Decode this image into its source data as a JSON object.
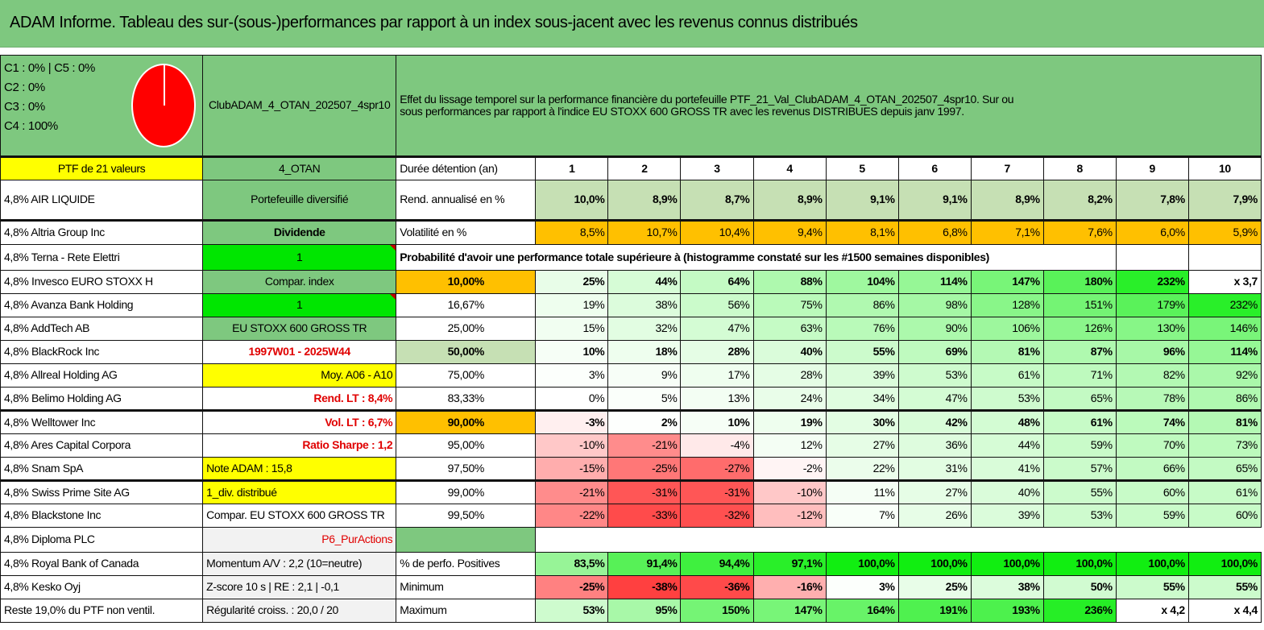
{
  "title": "ADAM Informe. Tableau des sur-(sous-)performances par rapport à un index sous-jacent avec les revenus connus distribués",
  "header": {
    "categories": [
      "C1 : 0% | C5 : 0%",
      "C2 : 0%",
      "C3 : 0%",
      "C4 : 100%"
    ],
    "pie": {
      "C1": 0,
      "C2": 0,
      "C3": 0,
      "C4": 100,
      "C5": 0,
      "color": "#ff0000"
    },
    "portfolio_name": "ClubADAM_4_OTAN_202507_4spr10",
    "description_lines": [
      "Effet du lissage temporel sur la performance financière du portefeuille PTF_21_Val_ClubADAM_4_OTAN_202507_4spr10. Sur ou",
      "sous performances par rapport à l'indice EU STOXX 600 GROSS TR avec les revenus DISTRIBUES depuis janv 1997."
    ]
  },
  "ptf_label": "PTF de 21 valeurs",
  "holdings": [
    "4,8% AIR LIQUIDE",
    "4,8% Altria Group Inc",
    "4,8% Terna - Rete Elettri",
    "4,8% Invesco EURO STOXX H",
    "4,8% Avanza Bank Holding",
    "4,8% AddTech AB",
    "4,8% BlackRock Inc",
    "4,8% Allreal Holding AG",
    "4,8% Belimo Holding AG",
    "4,8% Welltower Inc",
    "4,8% Ares Capital Corpora",
    "4,8% Snam SpA",
    "4,8% Swiss Prime Site AG",
    "4,8% Blackstone Inc",
    "4,8% Diploma PLC",
    "4,8% Royal Bank of Canada",
    "4,8% Kesko Oyj",
    "Reste 19,0% du PTF non ventil."
  ],
  "info": {
    "group": "4_OTAN",
    "type": "Portefeuille diversifié",
    "dividend_label": "Dividende",
    "dividend_value": "1",
    "compar_label": "Compar. index",
    "compar_value": "1",
    "index_name": "EU STOXX 600 GROSS TR",
    "period": "1997W01 - 2025W44",
    "avg": "Moy. A06 - A10",
    "rend_lt": "Rend. LT : 8,4%",
    "vol_lt": "Vol. LT : 6,7%",
    "sharpe": "Ratio Sharpe : 1,2",
    "note": "Note ADAM : 15,8",
    "div_mode": "1_div. distribué",
    "compar_full": "Compar. EU STOXX 600 GROSS TR",
    "profile": "P6_PurActions",
    "momentum": "Momentum A/V : 2,2 (10=neutre)",
    "zscore": "Z-score 10 s | RE : 2,1 | -0,1",
    "regularity": "Régularité croiss. : 20,0 / 20"
  },
  "table": {
    "duration_label": "Durée détention (an)",
    "years": [
      "1",
      "2",
      "3",
      "4",
      "5",
      "6",
      "7",
      "8",
      "9",
      "10"
    ],
    "rend_label": "Rend. annualisé en %",
    "rend": [
      "10,0%",
      "8,9%",
      "8,7%",
      "8,9%",
      "9,1%",
      "9,1%",
      "8,9%",
      "8,2%",
      "7,8%",
      "7,9%"
    ],
    "vol_label": "Volatilité en %",
    "vol": [
      "8,5%",
      "10,7%",
      "10,4%",
      "9,4%",
      "8,1%",
      "6,8%",
      "7,1%",
      "7,6%",
      "6,0%",
      "5,9%"
    ],
    "prob_title": "Probabilité d'avoir une performance totale supérieure à (histogramme constaté sur les #1500 semaines disponibles)",
    "prob_rows": [
      {
        "p": "10,00%",
        "v": [
          "25%",
          "44%",
          "64%",
          "88%",
          "104%",
          "114%",
          "147%",
          "180%",
          "232%",
          "x 3,7"
        ]
      },
      {
        "p": "16,67%",
        "v": [
          "19%",
          "38%",
          "56%",
          "75%",
          "86%",
          "98%",
          "128%",
          "151%",
          "179%",
          "232%"
        ]
      },
      {
        "p": "25,00%",
        "v": [
          "15%",
          "32%",
          "47%",
          "63%",
          "76%",
          "90%",
          "106%",
          "126%",
          "130%",
          "146%"
        ]
      },
      {
        "p": "50,00%",
        "v": [
          "10%",
          "18%",
          "28%",
          "40%",
          "55%",
          "69%",
          "81%",
          "87%",
          "96%",
          "114%"
        ]
      },
      {
        "p": "75,00%",
        "v": [
          "3%",
          "9%",
          "17%",
          "28%",
          "39%",
          "53%",
          "61%",
          "71%",
          "82%",
          "92%"
        ]
      },
      {
        "p": "83,33%",
        "v": [
          "0%",
          "5%",
          "13%",
          "24%",
          "34%",
          "47%",
          "53%",
          "65%",
          "78%",
          "86%"
        ]
      },
      {
        "p": "90,00%",
        "v": [
          "-3%",
          "2%",
          "10%",
          "19%",
          "30%",
          "42%",
          "48%",
          "61%",
          "74%",
          "81%"
        ]
      },
      {
        "p": "95,00%",
        "v": [
          "-10%",
          "-21%",
          "-4%",
          "12%",
          "27%",
          "36%",
          "44%",
          "59%",
          "70%",
          "73%"
        ]
      },
      {
        "p": "97,50%",
        "v": [
          "-15%",
          "-25%",
          "-27%",
          "-2%",
          "22%",
          "31%",
          "41%",
          "57%",
          "66%",
          "65%"
        ]
      },
      {
        "p": "99,00%",
        "v": [
          "-21%",
          "-31%",
          "-31%",
          "-10%",
          "11%",
          "27%",
          "40%",
          "55%",
          "60%",
          "61%"
        ]
      },
      {
        "p": "99,50%",
        "v": [
          "-22%",
          "-33%",
          "-32%",
          "-12%",
          "7%",
          "26%",
          "39%",
          "53%",
          "59%",
          "60%"
        ]
      }
    ],
    "positive_label": "% de perfo. Positives",
    "positive": [
      "83,5%",
      "91,4%",
      "94,4%",
      "97,1%",
      "100,0%",
      "100,0%",
      "100,0%",
      "100,0%",
      "100,0%",
      "100,0%"
    ],
    "min_label": "Minimum",
    "min": [
      "-25%",
      "-38%",
      "-36%",
      "-16%",
      "3%",
      "25%",
      "38%",
      "50%",
      "55%",
      "55%"
    ],
    "max_label": "Maximum",
    "max": [
      "53%",
      "95%",
      "150%",
      "147%",
      "164%",
      "191%",
      "193%",
      "236%",
      "x 4,2",
      "x 4,4"
    ]
  },
  "colors": {
    "header_green": "#7ec87f",
    "bright_green": "#00e600",
    "yellow": "#ffff00",
    "orange": "#ffc000",
    "light_green": "#c6e0b4",
    "red_text": "#e00000"
  }
}
